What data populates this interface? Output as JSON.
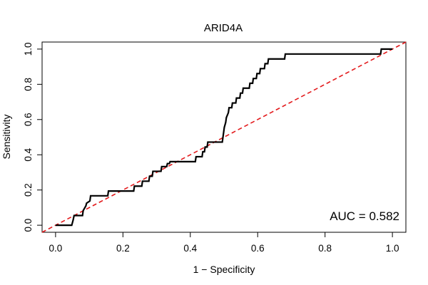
{
  "chart_data": {
    "type": "line",
    "title": "ARID4A",
    "xlabel": "1 − Specificity",
    "ylabel": "Sensitivity",
    "xlim": [
      -0.04,
      1.04
    ],
    "ylim": [
      -0.04,
      1.04
    ],
    "x_ticks": [
      "0.0",
      "0.2",
      "0.4",
      "0.6",
      "0.8",
      "1.0"
    ],
    "y_ticks": [
      "0.0",
      "0.2",
      "0.4",
      "0.6",
      "0.8",
      "1.0"
    ],
    "grid": false,
    "annotation": "AUC = 0.582",
    "colors": {
      "roc": "#000000",
      "reference": "#e31a1c"
    },
    "reference_line": {
      "x": [
        -0.04,
        1.04
      ],
      "y": [
        -0.04,
        1.04
      ]
    },
    "series": [
      {
        "x": [
          0.0,
          0.048,
          0.052,
          0.055,
          0.08,
          0.082,
          0.09,
          0.092,
          0.102,
          0.104,
          0.155,
          0.157,
          0.232,
          0.234,
          0.256,
          0.258,
          0.277,
          0.279,
          0.287,
          0.289,
          0.313,
          0.315,
          0.33,
          0.332,
          0.338,
          0.34,
          0.415,
          0.417,
          0.435,
          0.437,
          0.442,
          0.444,
          0.45,
          0.452,
          0.495,
          0.497,
          0.499,
          0.501,
          0.505,
          0.507,
          0.513,
          0.515,
          0.523,
          0.525,
          0.535,
          0.537,
          0.547,
          0.549,
          0.555,
          0.557,
          0.575,
          0.577,
          0.585,
          0.587,
          0.596,
          0.598,
          0.606,
          0.608,
          0.62,
          0.622,
          0.63,
          0.632,
          0.68,
          0.682,
          0.965,
          0.967,
          1.0
        ],
        "y": [
          0.0,
          0.0,
          0.028,
          0.055,
          0.055,
          0.083,
          0.11,
          0.125,
          0.138,
          0.167,
          0.167,
          0.194,
          0.194,
          0.222,
          0.222,
          0.25,
          0.25,
          0.278,
          0.278,
          0.306,
          0.306,
          0.333,
          0.333,
          0.35,
          0.35,
          0.361,
          0.361,
          0.389,
          0.389,
          0.417,
          0.417,
          0.444,
          0.444,
          0.472,
          0.472,
          0.5,
          0.528,
          0.556,
          0.583,
          0.611,
          0.639,
          0.667,
          0.667,
          0.694,
          0.694,
          0.722,
          0.722,
          0.75,
          0.75,
          0.778,
          0.778,
          0.806,
          0.806,
          0.833,
          0.833,
          0.861,
          0.861,
          0.889,
          0.889,
          0.917,
          0.917,
          0.944,
          0.944,
          0.972,
          0.972,
          1.0,
          1.0
        ]
      }
    ]
  }
}
